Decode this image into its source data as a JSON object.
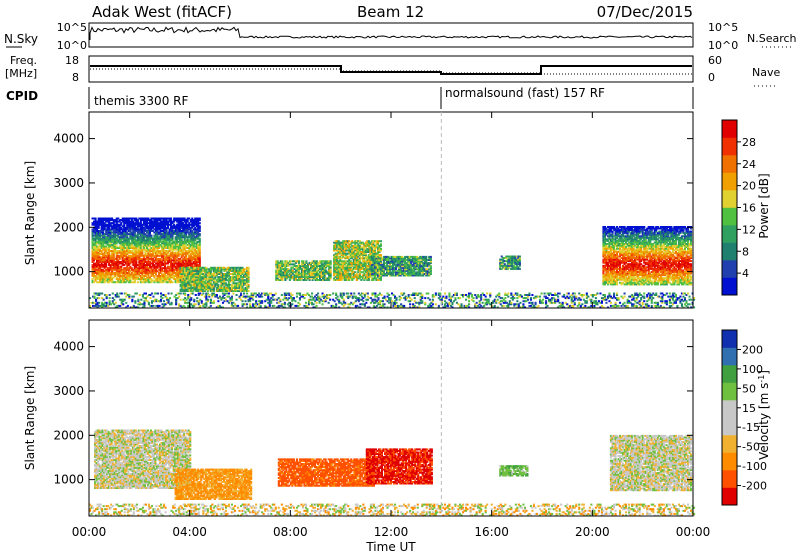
{
  "header": {
    "title": "Adak West (fitACF)",
    "beam": "Beam 12",
    "date": "07/Dec/2015"
  },
  "noise_panel": {
    "left_label": "N.Sky",
    "right_label": "N.Search",
    "ticks": [
      "10^5",
      "10^0"
    ]
  },
  "freq_panel": {
    "left_label_top": "Freq.",
    "left_label_bottom": "[MHz]",
    "left_ticks": [
      "18",
      "8"
    ],
    "right_label": "Nave",
    "right_ticks": [
      "60",
      "0"
    ]
  },
  "cpid_panel": {
    "label": "CPID",
    "modes": [
      {
        "name": "themis 3300 RF",
        "start_hour": 0
      },
      {
        "name": "normalsound (fast) 157 RF",
        "start_hour": 14
      }
    ]
  },
  "time_axis": {
    "label": "Time UT",
    "ticks": [
      "00:00",
      "04:00",
      "08:00",
      "12:00",
      "16:00",
      "20:00",
      "00:00"
    ]
  },
  "colors": {
    "power": [
      "#0010d0",
      "#2040b0",
      "#208070",
      "#30a060",
      "#50c040",
      "#e0d030",
      "#f0a000",
      "#f07000",
      "#f03000",
      "#e00000"
    ],
    "velocity": [
      "#e00000",
      "#ff5000",
      "#ff8c00",
      "#f0b030",
      "#c8c8c8",
      "#c8c8c8",
      "#70c040",
      "#40a040",
      "#3070b0",
      "#1030b0"
    ]
  },
  "chart_data": [
    {
      "type": "heatmap",
      "name": "power",
      "ylabel": "Slant Range [km]",
      "xlabel": "",
      "ylim": [
        180,
        4600
      ],
      "y_ticks": [
        1000,
        2000,
        3000,
        4000
      ],
      "colorbar": {
        "label": "Power [dB]",
        "range": [
          0,
          32
        ],
        "ticks": [
          4,
          8,
          12,
          16,
          20,
          24,
          28
        ]
      },
      "regions": [
        {
          "t": [
            0.1,
            4.4
          ],
          "r": [
            750,
            2200
          ],
          "level": "gradient_high"
        },
        {
          "t": [
            3.6,
            6.3
          ],
          "r": [
            550,
            1100
          ],
          "level": 13
        },
        {
          "t": [
            7.4,
            9.6
          ],
          "r": [
            800,
            1250
          ],
          "level": 12
        },
        {
          "t": [
            9.7,
            11.6
          ],
          "r": [
            800,
            1700
          ],
          "level": 14
        },
        {
          "t": [
            11.2,
            13.6
          ],
          "r": [
            900,
            1350
          ],
          "level": 9
        },
        {
          "t": [
            16.3,
            17.1
          ],
          "r": [
            1050,
            1350
          ],
          "level": 9
        },
        {
          "t": [
            20.4,
            23.9
          ],
          "r": [
            700,
            2000
          ],
          "level": "gradient_high"
        },
        {
          "t": [
            0,
            24
          ],
          "r": [
            180,
            500
          ],
          "level": "scatter"
        }
      ]
    },
    {
      "type": "heatmap",
      "name": "velocity",
      "ylabel": "Slant Range [km]",
      "xlabel": "Time UT",
      "ylim": [
        180,
        4600
      ],
      "y_ticks": [
        1000,
        2000,
        3000,
        4000
      ],
      "colorbar": {
        "label": "Velocity [m s-1]",
        "ticks": [
          -200,
          -100,
          -50,
          -15,
          15,
          50,
          100,
          200
        ]
      },
      "regions": [
        {
          "t": [
            0.2,
            4.0
          ],
          "r": [
            800,
            2100
          ],
          "velocity": 0
        },
        {
          "t": [
            3.4,
            6.4
          ],
          "r": [
            550,
            1250
          ],
          "velocity": -60
        },
        {
          "t": [
            7.5,
            11.3
          ],
          "r": [
            850,
            1450
          ],
          "velocity": -120
        },
        {
          "t": [
            11.0,
            13.6
          ],
          "r": [
            900,
            1700
          ],
          "velocity": -160
        },
        {
          "t": [
            16.3,
            17.4
          ],
          "r": [
            1080,
            1300
          ],
          "velocity": 40
        },
        {
          "t": [
            20.7,
            23.9
          ],
          "r": [
            750,
            2000
          ],
          "velocity": 0
        },
        {
          "t": [
            0,
            24
          ],
          "r": [
            180,
            450
          ],
          "velocity": "mixed"
        }
      ]
    }
  ]
}
